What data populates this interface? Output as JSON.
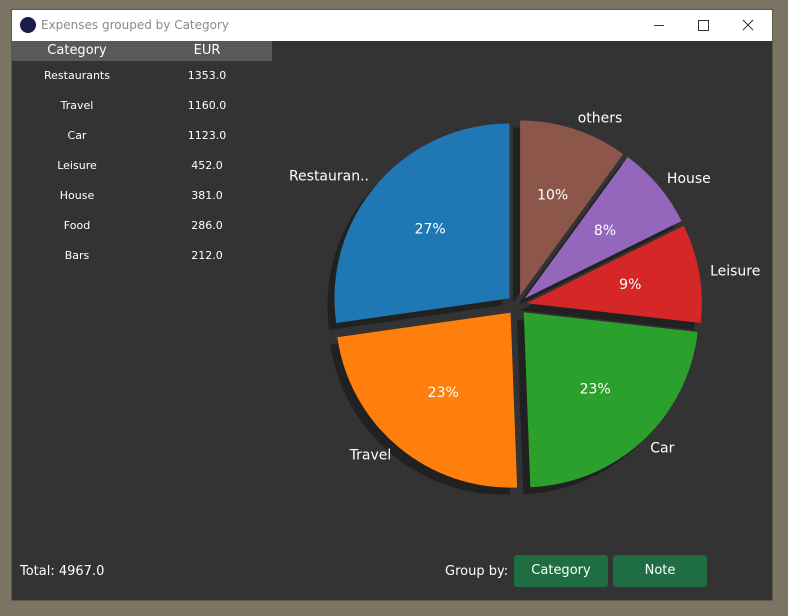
{
  "window": {
    "title": "Expenses grouped by Category"
  },
  "table": {
    "headers": {
      "category": "Category",
      "eur": "EUR"
    },
    "rows": [
      {
        "category": "Restaurants",
        "eur": "1353.0"
      },
      {
        "category": "Travel",
        "eur": "1160.0"
      },
      {
        "category": "Car",
        "eur": "1123.0"
      },
      {
        "category": "Leisure",
        "eur": "452.0"
      },
      {
        "category": "House",
        "eur": "381.0"
      },
      {
        "category": "Food",
        "eur": "286.0"
      },
      {
        "category": "Bars",
        "eur": "212.0"
      }
    ]
  },
  "footer": {
    "total": "Total: 4967.0",
    "group_by_label": "Group by:",
    "buttons": {
      "category": "Category",
      "note": "Note"
    }
  },
  "colors": {
    "window_bg": "#333333",
    "header_bg": "#595959",
    "button_bg": "#1f6e43"
  },
  "chart_data": {
    "type": "pie",
    "title": "",
    "slices": [
      {
        "label": "Restauran..",
        "value": 1353.0,
        "pct_label": "27%",
        "color": "#1f77b4"
      },
      {
        "label": "Travel",
        "value": 1160.0,
        "pct_label": "23%",
        "color": "#ff7f0e"
      },
      {
        "label": "Car",
        "value": 1123.0,
        "pct_label": "23%",
        "color": "#2ca02c"
      },
      {
        "label": "Leisure",
        "value": 452.0,
        "pct_label": "9%",
        "color": "#d62728"
      },
      {
        "label": "House",
        "value": 381.0,
        "pct_label": "8%",
        "color": "#9467bd"
      },
      {
        "label": "others",
        "value": 498.0,
        "pct_label": "10%",
        "color": "#8c564b"
      }
    ],
    "start_angle": 90,
    "direction": "counterclockwise",
    "exploded": true,
    "shadow": true
  }
}
